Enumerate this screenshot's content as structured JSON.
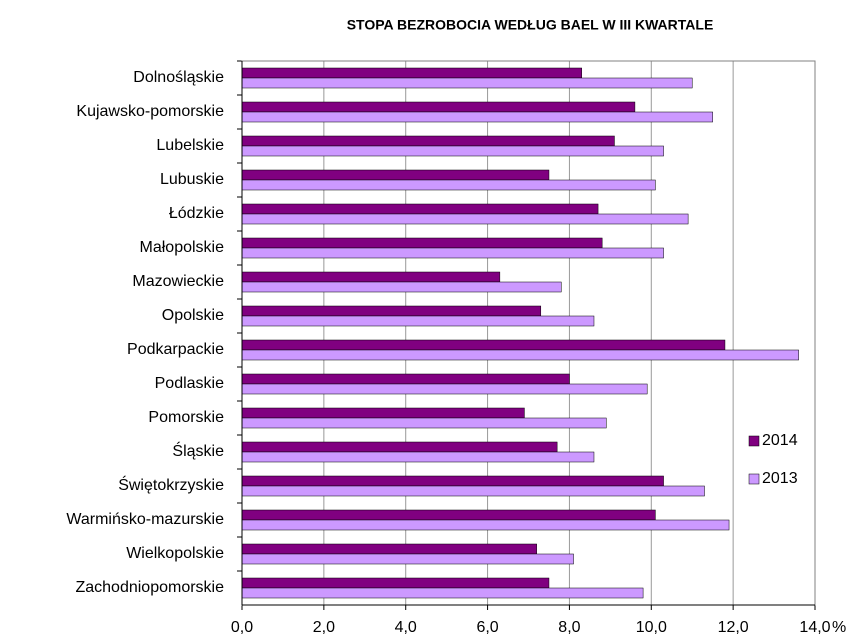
{
  "chart_data": {
    "type": "hbar",
    "title": "STOPA BEZROBOCIA WEDŁUG BAEL W III KWARTALE",
    "x_label": "%",
    "categories": [
      "Dolnośląskie",
      "Kujawsko-pomorskie",
      "Lubelskie",
      "Lubuskie",
      "Łódzkie",
      "Małopolskie",
      "Mazowieckie",
      "Opolskie",
      "Podkarpackie",
      "Podlaskie",
      "Pomorskie",
      "Śląskie",
      "Świętokrzyskie",
      "Warmińsko-mazurskie",
      "Wielkopolskie",
      "Zachodniopomorskie"
    ],
    "series": [
      {
        "name": "2014",
        "color": "#800080",
        "values": [
          8.3,
          9.6,
          9.1,
          7.5,
          8.7,
          8.8,
          6.3,
          7.3,
          11.8,
          8.0,
          6.9,
          7.7,
          10.3,
          10.1,
          7.2,
          7.5
        ]
      },
      {
        "name": "2013",
        "color": "#cc99ff",
        "values": [
          11.0,
          11.5,
          10.3,
          10.1,
          10.9,
          10.3,
          7.8,
          8.6,
          13.6,
          9.9,
          8.9,
          8.6,
          11.3,
          11.9,
          8.1,
          9.8
        ]
      }
    ],
    "xlim": [
      0,
      14
    ],
    "xticks": [
      {
        "value": 0,
        "label": "0,0"
      },
      {
        "value": 2,
        "label": "2,0"
      },
      {
        "value": 4,
        "label": "4,0"
      },
      {
        "value": 6,
        "label": "6,0"
      },
      {
        "value": 8,
        "label": "8,0"
      },
      {
        "value": 10,
        "label": "10,0"
      },
      {
        "value": 12,
        "label": "12,0"
      },
      {
        "value": 14,
        "label": "14,0"
      }
    ],
    "grid": true,
    "legend": "right"
  }
}
